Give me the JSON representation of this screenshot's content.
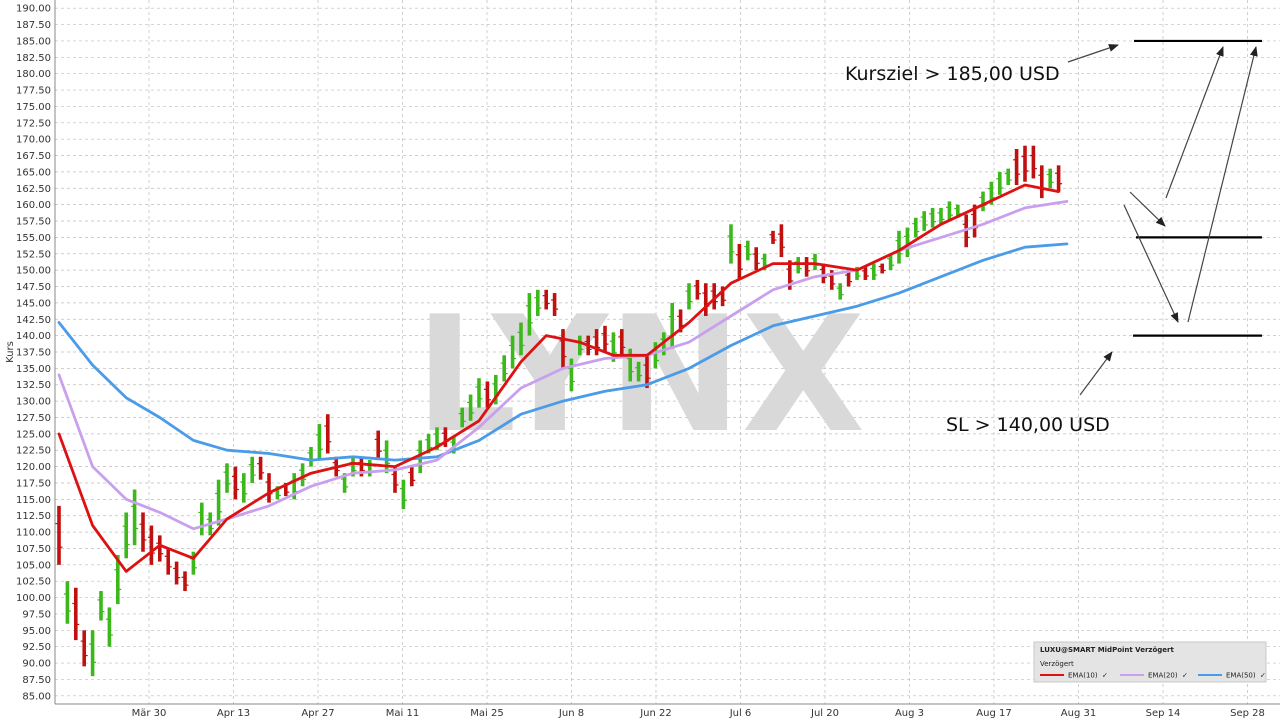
{
  "chart_data": {
    "type": "ohlc",
    "ylabel": "Kurs",
    "ylim": [
      83.75,
      191.25
    ],
    "y_ticks": [
      "85.00",
      "87.50",
      "90.00",
      "92.50",
      "95.00",
      "97.50",
      "100.00",
      "102.50",
      "105.00",
      "107.50",
      "110.00",
      "112.50",
      "115.00",
      "117.50",
      "120.00",
      "122.50",
      "125.00",
      "127.50",
      "130.00",
      "132.50",
      "135.00",
      "137.50",
      "140.00",
      "142.50",
      "145.00",
      "147.50",
      "150.00",
      "152.50",
      "155.00",
      "157.50",
      "160.00",
      "162.50",
      "165.00",
      "167.50",
      "170.00",
      "172.50",
      "175.00",
      "177.50",
      "180.00",
      "182.50",
      "185.00",
      "187.50",
      "190.00"
    ],
    "x_ticks": [
      "Mär 30",
      "Apr 13",
      "Apr 27",
      "Mai 11",
      "Mai 25",
      "Jun 8",
      "Jun 22",
      "Jul 6",
      "Jul 20",
      "Aug 3",
      "Aug 17",
      "Aug 31",
      "Sep 14",
      "Sep 28"
    ],
    "watermark": "LYNX",
    "candles": [
      [
        114,
        105,
        "d"
      ],
      [
        102.5,
        96,
        "u"
      ],
      [
        101.5,
        93.5,
        "d"
      ],
      [
        95,
        89.5,
        "d"
      ],
      [
        95,
        88,
        "u"
      ],
      [
        101,
        96.5,
        "u"
      ],
      [
        98.5,
        92.5,
        "u"
      ],
      [
        106.5,
        99,
        "u"
      ],
      [
        113,
        106,
        "u"
      ],
      [
        116.5,
        108,
        "u"
      ],
      [
        113,
        107,
        "d"
      ],
      [
        111,
        105,
        "d"
      ],
      [
        109.5,
        105.5,
        "d"
      ],
      [
        107.5,
        103.5,
        "d"
      ],
      [
        105.5,
        102,
        "d"
      ],
      [
        104,
        101,
        "d"
      ],
      [
        107,
        103.5,
        "u"
      ],
      [
        114.5,
        109.5,
        "u"
      ],
      [
        113,
        109.5,
        "u"
      ],
      [
        118,
        111,
        "u"
      ],
      [
        120.5,
        116,
        "u"
      ],
      [
        120,
        115,
        "d"
      ],
      [
        119,
        114.5,
        "u"
      ],
      [
        121.5,
        117.5,
        "u"
      ],
      [
        121.5,
        118,
        "d"
      ],
      [
        119,
        114.5,
        "d"
      ],
      [
        117,
        115,
        "u"
      ],
      [
        117.5,
        115.5,
        "d"
      ],
      [
        119,
        115,
        "u"
      ],
      [
        120.5,
        117,
        "u"
      ],
      [
        123,
        120,
        "u"
      ],
      [
        126.5,
        121,
        "u"
      ],
      [
        128,
        122,
        "d"
      ],
      [
        121.5,
        118.5,
        "d"
      ],
      [
        119,
        116,
        "u"
      ],
      [
        121.5,
        118.5,
        "u"
      ],
      [
        121.5,
        118.5,
        "d"
      ],
      [
        121,
        118.5,
        "u"
      ],
      [
        125.5,
        121,
        "d"
      ],
      [
        124,
        119,
        "u"
      ],
      [
        120,
        116,
        "d"
      ],
      [
        118,
        113.5,
        "u"
      ],
      [
        120,
        117,
        "d"
      ],
      [
        124,
        119,
        "u"
      ],
      [
        125,
        122,
        "u"
      ],
      [
        126,
        122.5,
        "u"
      ],
      [
        126,
        123,
        "d"
      ],
      [
        124.5,
        122,
        "u"
      ],
      [
        129,
        126,
        "u"
      ],
      [
        131,
        127,
        "u"
      ],
      [
        133.5,
        129,
        "u"
      ],
      [
        133,
        129,
        "d"
      ],
      [
        134,
        129.5,
        "u"
      ],
      [
        137,
        133,
        "u"
      ],
      [
        140,
        135,
        "u"
      ],
      [
        142,
        137,
        "u"
      ],
      [
        146.5,
        140,
        "u"
      ],
      [
        147,
        143,
        "u"
      ],
      [
        147,
        144,
        "d"
      ],
      [
        146.5,
        143,
        "d"
      ],
      [
        141,
        135,
        "d"
      ],
      [
        136.5,
        131.5,
        "u"
      ],
      [
        140,
        137,
        "u"
      ],
      [
        140,
        137,
        "d"
      ],
      [
        141,
        137,
        "d"
      ],
      [
        141.5,
        137.5,
        "d"
      ],
      [
        140.5,
        136,
        "u"
      ],
      [
        141,
        137,
        "d"
      ],
      [
        138,
        133,
        "u"
      ],
      [
        136,
        133,
        "u"
      ],
      [
        137,
        132,
        "d"
      ],
      [
        139,
        135,
        "u"
      ],
      [
        140.5,
        137,
        "u"
      ],
      [
        145,
        138,
        "u"
      ],
      [
        144,
        140.5,
        "d"
      ],
      [
        148,
        144,
        "u"
      ],
      [
        148.5,
        145.5,
        "d"
      ],
      [
        148,
        143,
        "d"
      ],
      [
        148,
        144,
        "d"
      ],
      [
        147.5,
        144.5,
        "d"
      ],
      [
        157,
        151,
        "u"
      ],
      [
        154,
        148.5,
        "d"
      ],
      [
        154.5,
        151.5,
        "u"
      ],
      [
        153.5,
        150,
        "d"
      ],
      [
        152.5,
        150,
        "u"
      ],
      [
        156,
        154,
        "d"
      ],
      [
        157,
        152,
        "d"
      ],
      [
        151.5,
        147,
        "d"
      ],
      [
        152,
        149.5,
        "u"
      ],
      [
        152,
        149,
        "d"
      ],
      [
        152.5,
        150,
        "u"
      ],
      [
        151,
        148,
        "d"
      ],
      [
        150,
        147,
        "d"
      ],
      [
        148,
        145.5,
        "u"
      ],
      [
        150,
        147.5,
        "d"
      ],
      [
        150.5,
        148.5,
        "u"
      ],
      [
        150.5,
        148.5,
        "d"
      ],
      [
        151,
        148.5,
        "u"
      ],
      [
        151,
        149.5,
        "d"
      ],
      [
        152.5,
        150,
        "u"
      ],
      [
        156,
        151,
        "u"
      ],
      [
        156.5,
        152,
        "u"
      ],
      [
        158,
        155,
        "u"
      ],
      [
        159,
        156,
        "u"
      ],
      [
        159.5,
        156.5,
        "u"
      ],
      [
        159.5,
        157,
        "u"
      ],
      [
        160.5,
        157.5,
        "u"
      ],
      [
        160,
        158,
        "u"
      ],
      [
        158.5,
        153.5,
        "d"
      ],
      [
        160,
        155,
        "d"
      ],
      [
        162,
        159,
        "u"
      ],
      [
        163.5,
        160,
        "u"
      ],
      [
        165,
        161.5,
        "u"
      ],
      [
        165.5,
        163,
        "u"
      ],
      [
        168.5,
        163,
        "d"
      ],
      [
        169,
        163.5,
        "d"
      ],
      [
        169,
        164,
        "d"
      ],
      [
        166,
        161,
        "d"
      ],
      [
        165.5,
        162.5,
        "u"
      ],
      [
        166,
        162,
        "d"
      ]
    ],
    "series": [
      {
        "name": "EMA(10)",
        "color": "#dd1111",
        "x": [
          0,
          4,
          8,
          12,
          16,
          20,
          25,
          30,
          35,
          40,
          45,
          50,
          55,
          58,
          62,
          66,
          70,
          75,
          80,
          85,
          90,
          95,
          100,
          105,
          110,
          115,
          119
        ],
        "y": [
          125,
          111,
          104,
          108,
          106,
          112,
          116,
          119,
          120.5,
          120,
          123,
          127,
          136,
          140,
          139,
          137,
          137,
          142,
          148,
          151,
          151,
          150,
          153,
          157,
          160,
          163,
          162
        ]
      },
      {
        "name": "EMA(20)",
        "color": "#c9a0ee",
        "x": [
          0,
          4,
          8,
          12,
          16,
          20,
          25,
          30,
          35,
          40,
          45,
          50,
          55,
          60,
          65,
          70,
          75,
          80,
          85,
          90,
          95,
          100,
          105,
          110,
          115,
          120
        ],
        "y": [
          134,
          120,
          115,
          113,
          110.5,
          112,
          114,
          117,
          119,
          119.5,
          121,
          126,
          132,
          135,
          136.5,
          137,
          139,
          143,
          147,
          149,
          150,
          153,
          155,
          157,
          159.5,
          160.5
        ]
      },
      {
        "name": "EMA(50)",
        "color": "#4a9be8",
        "x": [
          0,
          4,
          8,
          12,
          16,
          20,
          25,
          30,
          35,
          40,
          45,
          50,
          55,
          60,
          65,
          70,
          75,
          80,
          85,
          90,
          95,
          100,
          105,
          110,
          115,
          120
        ],
        "y": [
          142,
          135.5,
          130.5,
          127.5,
          124,
          122.5,
          122,
          121,
          121.5,
          121,
          121.5,
          124,
          128,
          130,
          131.5,
          132.5,
          135,
          138.5,
          141.5,
          143,
          144.5,
          146.5,
          149,
          151.5,
          153.5,
          154
        ]
      }
    ],
    "levels": [
      185,
      155,
      140
    ],
    "annotations": {
      "target": "Kursziel > 185,00 USD",
      "stop_loss": "SL > 140,00 USD"
    },
    "legend": {
      "title": "LUXU@SMART MidPoint Verzögert",
      "subtitle": "Verzögert",
      "items": [
        "EMA(10)",
        "EMA(20)",
        "EMA(50)"
      ]
    },
    "colors": {
      "up": "#3db81c",
      "down": "#c01010"
    }
  }
}
